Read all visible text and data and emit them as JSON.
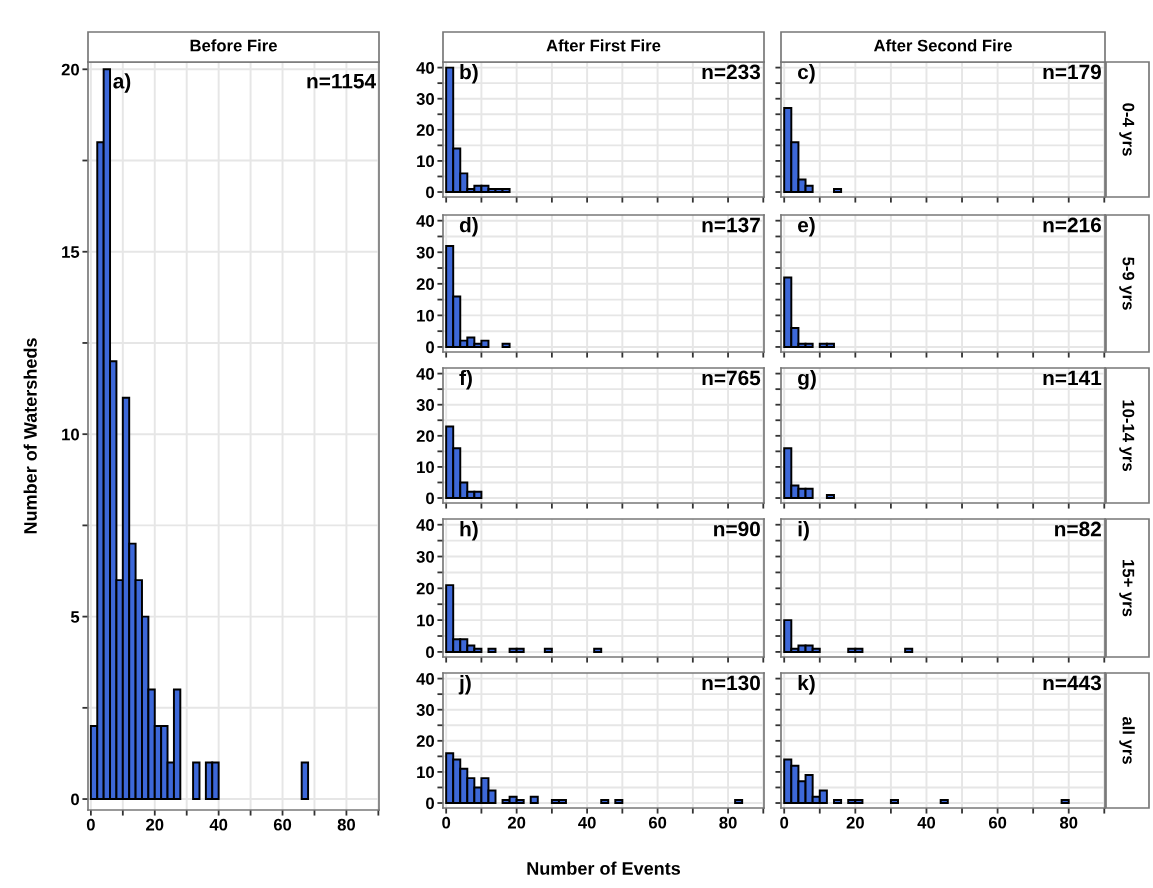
{
  "chart_data": [
    {
      "type": "histogram",
      "title": "Before Fire",
      "ylabel": "Number of Watersheds",
      "annotations": [
        "a)",
        "n=1154"
      ],
      "color": "#3d68d8",
      "grid": true,
      "bins": [
        0,
        2,
        4,
        6,
        8,
        10,
        12,
        14,
        16,
        18,
        20,
        22,
        24,
        26,
        28,
        30,
        32,
        34,
        36,
        38,
        40,
        42,
        44,
        46,
        48,
        50,
        52,
        54,
        56,
        58,
        60,
        62,
        64,
        66,
        68,
        70,
        72,
        74,
        76,
        78,
        80,
        82,
        84,
        86,
        88,
        90
      ],
      "values": [
        2,
        18,
        20,
        12,
        6,
        11,
        7,
        6,
        5,
        3,
        2,
        2,
        1,
        3,
        0,
        0,
        1,
        0,
        1,
        1,
        0,
        0,
        0,
        0,
        0,
        0,
        0,
        0,
        0,
        0,
        0,
        0,
        0,
        1,
        0,
        0,
        0,
        0,
        0,
        0,
        0,
        0,
        0,
        0,
        0
      ],
      "xlim": [
        -0.9,
        90.2
      ],
      "xticks": [
        0,
        {
          "value": 10,
          "label": null
        },
        20,
        {
          "value": 30,
          "label": null
        },
        40,
        {
          "value": 50,
          "label": null
        },
        60,
        {
          "value": 70,
          "label": null
        },
        80,
        {
          "value": 90,
          "label": null
        }
      ],
      "ylim": [
        -0.3,
        20.2
      ],
      "yticks": [
        0,
        {
          "value": 2.5,
          "label": null
        },
        5,
        {
          "value": 7.5,
          "label": null
        },
        10,
        {
          "value": 12.5,
          "label": null
        },
        15,
        {
          "value": 17.5,
          "label": null
        },
        20
      ]
    },
    {
      "type": "histogram",
      "title": "After First Fire",
      "annotations": [
        "b)",
        "n=233"
      ],
      "color": "#3d68d8",
      "grid": true,
      "tick_labels": "y",
      "bins": [
        0,
        2,
        4,
        6,
        8,
        10,
        12,
        14,
        16,
        18,
        20,
        22,
        24,
        26,
        28,
        30,
        32,
        34,
        36,
        38,
        40,
        42,
        44,
        46,
        48,
        50,
        52,
        54,
        56,
        58,
        60,
        62,
        64,
        66,
        68,
        70,
        72,
        74,
        76,
        78,
        80,
        82,
        84,
        86,
        88,
        90
      ],
      "values": [
        40,
        14,
        6,
        1,
        2,
        2,
        1,
        1,
        1,
        0,
        0,
        0,
        0,
        0,
        0,
        0,
        0,
        0,
        0,
        0,
        0,
        0,
        0,
        0,
        0,
        0,
        0,
        0,
        0,
        0,
        0,
        0,
        0,
        0,
        0,
        0,
        0,
        0,
        0,
        0,
        0,
        0,
        0,
        0,
        0
      ],
      "xlim": [
        -0.9,
        90.2
      ],
      "xticks": [
        0,
        {
          "value": 10,
          "label": null
        },
        20,
        {
          "value": 30,
          "label": null
        },
        40,
        {
          "value": 50,
          "label": null
        },
        60,
        {
          "value": 70,
          "label": null
        },
        80,
        {
          "value": 90,
          "label": null
        }
      ],
      "ylim": [
        -1.6,
        41.8
      ],
      "yticks": [
        0,
        {
          "value": 5,
          "label": null
        },
        10,
        {
          "value": 15,
          "label": null
        },
        20,
        {
          "value": 25,
          "label": null
        },
        30,
        {
          "value": 35,
          "label": null
        },
        40
      ]
    },
    {
      "type": "histogram",
      "title": "After Second Fire",
      "y2label": "0-4 yrs",
      "annotations": [
        "c)",
        "n=179"
      ],
      "color": "#3d68d8",
      "grid": true,
      "tick_labels": false,
      "bins": [
        0,
        2,
        4,
        6,
        8,
        10,
        12,
        14,
        16,
        18,
        20,
        22,
        24,
        26,
        28,
        30,
        32,
        34,
        36,
        38,
        40,
        42,
        44,
        46,
        48,
        50,
        52,
        54,
        56,
        58,
        60,
        62,
        64,
        66,
        68,
        70,
        72,
        74,
        76,
        78,
        80,
        82,
        84,
        86,
        88,
        90
      ],
      "values": [
        27,
        16,
        4,
        2,
        0,
        0,
        0,
        1,
        0,
        0,
        0,
        0,
        0,
        0,
        0,
        0,
        0,
        0,
        0,
        0,
        0,
        0,
        0,
        0,
        0,
        0,
        0,
        0,
        0,
        0,
        0,
        0,
        0,
        0,
        0,
        0,
        0,
        0,
        0,
        0,
        0,
        0,
        0,
        0,
        0
      ],
      "xlim": [
        -0.9,
        90.2
      ],
      "xticks": [
        0,
        {
          "value": 10,
          "label": null
        },
        20,
        {
          "value": 30,
          "label": null
        },
        40,
        {
          "value": 50,
          "label": null
        },
        60,
        {
          "value": 70,
          "label": null
        },
        80,
        {
          "value": 90,
          "label": null
        }
      ],
      "ylim": [
        -1.6,
        41.8
      ],
      "yticks": [
        0,
        {
          "value": 5,
          "label": null
        },
        10,
        {
          "value": 15,
          "label": null
        },
        20,
        {
          "value": 25,
          "label": null
        },
        30,
        {
          "value": 35,
          "label": null
        },
        40
      ]
    },
    {
      "type": "histogram",
      "annotations": [
        "d)",
        "n=137"
      ],
      "color": "#3d68d8",
      "grid": true,
      "tick_labels": "y",
      "bins": [
        0,
        2,
        4,
        6,
        8,
        10,
        12,
        14,
        16,
        18,
        20,
        22,
        24,
        26,
        28,
        30,
        32,
        34,
        36,
        38,
        40,
        42,
        44,
        46,
        48,
        50,
        52,
        54,
        56,
        58,
        60,
        62,
        64,
        66,
        68,
        70,
        72,
        74,
        76,
        78,
        80,
        82,
        84,
        86,
        88,
        90
      ],
      "values": [
        32,
        16,
        2,
        3,
        1,
        2,
        0,
        0,
        1,
        0,
        0,
        0,
        0,
        0,
        0,
        0,
        0,
        0,
        0,
        0,
        0,
        0,
        0,
        0,
        0,
        0,
        0,
        0,
        0,
        0,
        0,
        0,
        0,
        0,
        0,
        0,
        0,
        0,
        0,
        0,
        0,
        0,
        0,
        0,
        0
      ],
      "xlim": [
        -0.9,
        90.2
      ],
      "xticks": [
        0,
        {
          "value": 10,
          "label": null
        },
        20,
        {
          "value": 30,
          "label": null
        },
        40,
        {
          "value": 50,
          "label": null
        },
        60,
        {
          "value": 70,
          "label": null
        },
        80,
        {
          "value": 90,
          "label": null
        }
      ],
      "ylim": [
        -1.6,
        41.8
      ],
      "yticks": [
        0,
        {
          "value": 5,
          "label": null
        },
        10,
        {
          "value": 15,
          "label": null
        },
        20,
        {
          "value": 25,
          "label": null
        },
        30,
        {
          "value": 35,
          "label": null
        },
        40
      ]
    },
    {
      "type": "histogram",
      "y2label": "5-9 yrs",
      "annotations": [
        "e)",
        "n=216"
      ],
      "color": "#3d68d8",
      "grid": true,
      "tick_labels": false,
      "bins": [
        0,
        2,
        4,
        6,
        8,
        10,
        12,
        14,
        16,
        18,
        20,
        22,
        24,
        26,
        28,
        30,
        32,
        34,
        36,
        38,
        40,
        42,
        44,
        46,
        48,
        50,
        52,
        54,
        56,
        58,
        60,
        62,
        64,
        66,
        68,
        70,
        72,
        74,
        76,
        78,
        80,
        82,
        84,
        86,
        88,
        90
      ],
      "values": [
        22,
        6,
        1,
        1,
        0,
        1,
        1,
        0,
        0,
        0,
        0,
        0,
        0,
        0,
        0,
        0,
        0,
        0,
        0,
        0,
        0,
        0,
        0,
        0,
        0,
        0,
        0,
        0,
        0,
        0,
        0,
        0,
        0,
        0,
        0,
        0,
        0,
        0,
        0,
        0,
        0,
        0,
        0,
        0,
        0
      ],
      "xlim": [
        -0.9,
        90.2
      ],
      "xticks": [
        0,
        {
          "value": 10,
          "label": null
        },
        20,
        {
          "value": 30,
          "label": null
        },
        40,
        {
          "value": 50,
          "label": null
        },
        60,
        {
          "value": 70,
          "label": null
        },
        80,
        {
          "value": 90,
          "label": null
        }
      ],
      "ylim": [
        -1.6,
        41.8
      ],
      "yticks": [
        0,
        {
          "value": 5,
          "label": null
        },
        10,
        {
          "value": 15,
          "label": null
        },
        20,
        {
          "value": 25,
          "label": null
        },
        30,
        {
          "value": 35,
          "label": null
        },
        40
      ]
    },
    {
      "type": "histogram",
      "annotations": [
        "f)",
        "n=765"
      ],
      "color": "#3d68d8",
      "grid": true,
      "tick_labels": "y",
      "bins": [
        0,
        2,
        4,
        6,
        8,
        10,
        12,
        14,
        16,
        18,
        20,
        22,
        24,
        26,
        28,
        30,
        32,
        34,
        36,
        38,
        40,
        42,
        44,
        46,
        48,
        50,
        52,
        54,
        56,
        58,
        60,
        62,
        64,
        66,
        68,
        70,
        72,
        74,
        76,
        78,
        80,
        82,
        84,
        86,
        88,
        90
      ],
      "values": [
        23,
        16,
        5,
        2,
        2,
        0,
        0,
        0,
        0,
        0,
        0,
        0,
        0,
        0,
        0,
        0,
        0,
        0,
        0,
        0,
        0,
        0,
        0,
        0,
        0,
        0,
        0,
        0,
        0,
        0,
        0,
        0,
        0,
        0,
        0,
        0,
        0,
        0,
        0,
        0,
        0,
        0,
        0,
        0,
        0
      ],
      "xlim": [
        -0.9,
        90.2
      ],
      "xticks": [
        0,
        {
          "value": 10,
          "label": null
        },
        20,
        {
          "value": 30,
          "label": null
        },
        40,
        {
          "value": 50,
          "label": null
        },
        60,
        {
          "value": 70,
          "label": null
        },
        80,
        {
          "value": 90,
          "label": null
        }
      ],
      "ylim": [
        -1.6,
        41.8
      ],
      "yticks": [
        0,
        {
          "value": 5,
          "label": null
        },
        10,
        {
          "value": 15,
          "label": null
        },
        20,
        {
          "value": 25,
          "label": null
        },
        30,
        {
          "value": 35,
          "label": null
        },
        40
      ]
    },
    {
      "type": "histogram",
      "y2label": "10-14 yrs",
      "annotations": [
        "g)",
        "n=141"
      ],
      "color": "#3d68d8",
      "grid": true,
      "tick_labels": false,
      "bins": [
        0,
        2,
        4,
        6,
        8,
        10,
        12,
        14,
        16,
        18,
        20,
        22,
        24,
        26,
        28,
        30,
        32,
        34,
        36,
        38,
        40,
        42,
        44,
        46,
        48,
        50,
        52,
        54,
        56,
        58,
        60,
        62,
        64,
        66,
        68,
        70,
        72,
        74,
        76,
        78,
        80,
        82,
        84,
        86,
        88,
        90
      ],
      "values": [
        16,
        4,
        3,
        3,
        0,
        0,
        1,
        0,
        0,
        0,
        0,
        0,
        0,
        0,
        0,
        0,
        0,
        0,
        0,
        0,
        0,
        0,
        0,
        0,
        0,
        0,
        0,
        0,
        0,
        0,
        0,
        0,
        0,
        0,
        0,
        0,
        0,
        0,
        0,
        0,
        0,
        0,
        0,
        0,
        0
      ],
      "xlim": [
        -0.9,
        90.2
      ],
      "xticks": [
        0,
        {
          "value": 10,
          "label": null
        },
        20,
        {
          "value": 30,
          "label": null
        },
        40,
        {
          "value": 50,
          "label": null
        },
        60,
        {
          "value": 70,
          "label": null
        },
        80,
        {
          "value": 90,
          "label": null
        }
      ],
      "ylim": [
        -1.6,
        41.8
      ],
      "yticks": [
        0,
        {
          "value": 5,
          "label": null
        },
        10,
        {
          "value": 15,
          "label": null
        },
        20,
        {
          "value": 25,
          "label": null
        },
        30,
        {
          "value": 35,
          "label": null
        },
        40
      ]
    },
    {
      "type": "histogram",
      "annotations": [
        "h)",
        "n=90"
      ],
      "color": "#3d68d8",
      "grid": true,
      "tick_labels": "y",
      "bins": [
        0,
        2,
        4,
        6,
        8,
        10,
        12,
        14,
        16,
        18,
        20,
        22,
        24,
        26,
        28,
        30,
        32,
        34,
        36,
        38,
        40,
        42,
        44,
        46,
        48,
        50,
        52,
        54,
        56,
        58,
        60,
        62,
        64,
        66,
        68,
        70,
        72,
        74,
        76,
        78,
        80,
        82,
        84,
        86,
        88,
        90
      ],
      "values": [
        21,
        4,
        4,
        2,
        1,
        0,
        1,
        0,
        0,
        1,
        1,
        0,
        0,
        0,
        1,
        0,
        0,
        0,
        0,
        0,
        0,
        1,
        0,
        0,
        0,
        0,
        0,
        0,
        0,
        0,
        0,
        0,
        0,
        0,
        0,
        0,
        0,
        0,
        0,
        0,
        0,
        0,
        0,
        0,
        0
      ],
      "xlim": [
        -0.9,
        90.2
      ],
      "xticks": [
        0,
        {
          "value": 10,
          "label": null
        },
        20,
        {
          "value": 30,
          "label": null
        },
        40,
        {
          "value": 50,
          "label": null
        },
        60,
        {
          "value": 70,
          "label": null
        },
        80,
        {
          "value": 90,
          "label": null
        }
      ],
      "ylim": [
        -1.6,
        41.8
      ],
      "yticks": [
        0,
        {
          "value": 5,
          "label": null
        },
        10,
        {
          "value": 15,
          "label": null
        },
        20,
        {
          "value": 25,
          "label": null
        },
        30,
        {
          "value": 35,
          "label": null
        },
        40
      ]
    },
    {
      "type": "histogram",
      "y2label": "15+ yrs",
      "annotations": [
        "i)",
        "n=82"
      ],
      "color": "#3d68d8",
      "grid": true,
      "tick_labels": false,
      "bins": [
        0,
        2,
        4,
        6,
        8,
        10,
        12,
        14,
        16,
        18,
        20,
        22,
        24,
        26,
        28,
        30,
        32,
        34,
        36,
        38,
        40,
        42,
        44,
        46,
        48,
        50,
        52,
        54,
        56,
        58,
        60,
        62,
        64,
        66,
        68,
        70,
        72,
        74,
        76,
        78,
        80,
        82,
        84,
        86,
        88,
        90
      ],
      "values": [
        10,
        1,
        2,
        2,
        1,
        0,
        0,
        0,
        0,
        1,
        1,
        0,
        0,
        0,
        0,
        0,
        0,
        1,
        0,
        0,
        0,
        0,
        0,
        0,
        0,
        0,
        0,
        0,
        0,
        0,
        0,
        0,
        0,
        0,
        0,
        0,
        0,
        0,
        0,
        0,
        0,
        0,
        0,
        0,
        0
      ],
      "xlim": [
        -0.9,
        90.2
      ],
      "xticks": [
        0,
        {
          "value": 10,
          "label": null
        },
        20,
        {
          "value": 30,
          "label": null
        },
        40,
        {
          "value": 50,
          "label": null
        },
        60,
        {
          "value": 70,
          "label": null
        },
        80,
        {
          "value": 90,
          "label": null
        }
      ],
      "ylim": [
        -1.6,
        41.8
      ],
      "yticks": [
        0,
        {
          "value": 5,
          "label": null
        },
        10,
        {
          "value": 15,
          "label": null
        },
        20,
        {
          "value": 25,
          "label": null
        },
        30,
        {
          "value": 35,
          "label": null
        },
        40
      ]
    },
    {
      "type": "histogram",
      "xlabel": "Number of Events",
      "annotations": [
        "j)",
        "n=130"
      ],
      "color": "#3d68d8",
      "grid": true,
      "bins": [
        0,
        2,
        4,
        6,
        8,
        10,
        12,
        14,
        16,
        18,
        20,
        22,
        24,
        26,
        28,
        30,
        32,
        34,
        36,
        38,
        40,
        42,
        44,
        46,
        48,
        50,
        52,
        54,
        56,
        58,
        60,
        62,
        64,
        66,
        68,
        70,
        72,
        74,
        76,
        78,
        80,
        82,
        84,
        86,
        88,
        90
      ],
      "values": [
        16,
        14,
        11,
        8,
        5,
        8,
        4,
        0,
        1,
        2,
        1,
        0,
        2,
        0,
        0,
        1,
        1,
        0,
        0,
        0,
        0,
        0,
        1,
        0,
        1,
        0,
        0,
        0,
        0,
        0,
        0,
        0,
        0,
        0,
        0,
        0,
        0,
        0,
        0,
        0,
        0,
        1,
        0,
        0,
        0
      ],
      "xlim": [
        -0.9,
        90.2
      ],
      "xticks": [
        0,
        {
          "value": 10,
          "label": null
        },
        20,
        {
          "value": 30,
          "label": null
        },
        40,
        {
          "value": 50,
          "label": null
        },
        60,
        {
          "value": 70,
          "label": null
        },
        80,
        {
          "value": 90,
          "label": null
        }
      ],
      "ylim": [
        -1.6,
        41.8
      ],
      "yticks": [
        0,
        {
          "value": 5,
          "label": null
        },
        10,
        {
          "value": 15,
          "label": null
        },
        20,
        {
          "value": 25,
          "label": null
        },
        30,
        {
          "value": 35,
          "label": null
        },
        40
      ]
    },
    {
      "type": "histogram",
      "y2label": "all yrs",
      "annotations": [
        "k)",
        "n=443"
      ],
      "color": "#3d68d8",
      "grid": true,
      "tick_labels": "x",
      "bins": [
        0,
        2,
        4,
        6,
        8,
        10,
        12,
        14,
        16,
        18,
        20,
        22,
        24,
        26,
        28,
        30,
        32,
        34,
        36,
        38,
        40,
        42,
        44,
        46,
        48,
        50,
        52,
        54,
        56,
        58,
        60,
        62,
        64,
        66,
        68,
        70,
        72,
        74,
        76,
        78,
        80,
        82,
        84,
        86,
        88,
        90
      ],
      "values": [
        14,
        12,
        7,
        9,
        2,
        4,
        0,
        1,
        0,
        1,
        1,
        0,
        0,
        0,
        0,
        1,
        0,
        0,
        0,
        0,
        0,
        0,
        1,
        0,
        0,
        0,
        0,
        0,
        0,
        0,
        0,
        0,
        0,
        0,
        0,
        0,
        0,
        0,
        0,
        1,
        0,
        0,
        0,
        0,
        0
      ],
      "xlim": [
        -0.9,
        90.2
      ],
      "xticks": [
        0,
        {
          "value": 10,
          "label": null
        },
        20,
        {
          "value": 30,
          "label": null
        },
        40,
        {
          "value": 50,
          "label": null
        },
        60,
        {
          "value": 70,
          "label": null
        },
        80,
        {
          "value": 90,
          "label": null
        }
      ],
      "ylim": [
        -1.6,
        41.8
      ],
      "yticks": [
        0,
        {
          "value": 5,
          "label": null
        },
        10,
        {
          "value": 15,
          "label": null
        },
        20,
        {
          "value": 25,
          "label": null
        },
        30,
        {
          "value": 35,
          "label": null
        },
        40
      ]
    }
  ]
}
